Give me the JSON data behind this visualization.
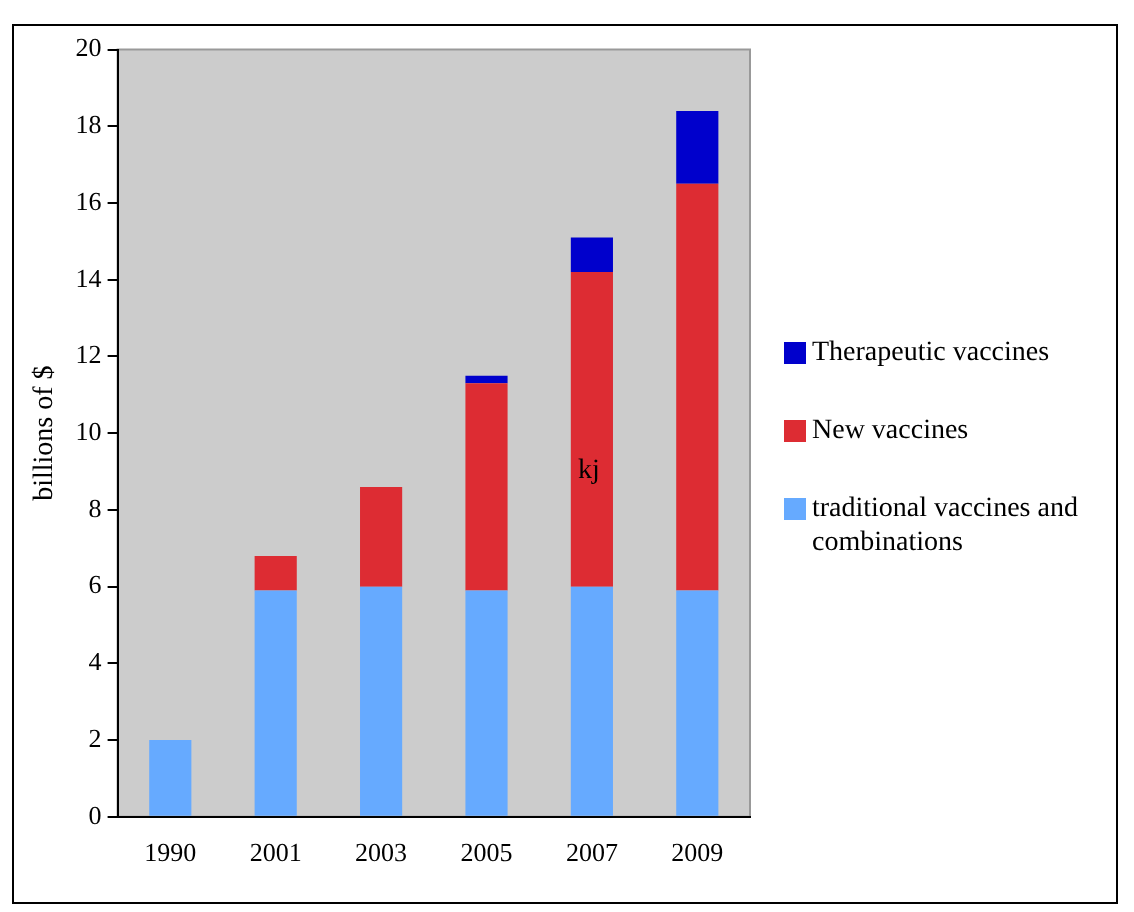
{
  "chart_data": {
    "type": "bar",
    "stacked": true,
    "ylabel": "billions of $",
    "categories": [
      "1990",
      "2001",
      "2003",
      "2005",
      "2007",
      "2009"
    ],
    "series": [
      {
        "name": "traditional vaccines and combinations",
        "color": "#66aaff",
        "values": [
          2.0,
          5.9,
          6.0,
          5.9,
          6.0,
          5.9
        ]
      },
      {
        "name": "New vaccines",
        "color": "#dd2c33",
        "values": [
          null,
          0.9,
          2.6,
          5.4,
          8.2,
          10.6
        ]
      },
      {
        "name": "Therapeutic vaccines",
        "color": "#0000cc",
        "values": [
          null,
          null,
          null,
          0.2,
          0.9,
          1.9
        ]
      }
    ],
    "ylim": [
      0,
      20
    ],
    "yticks": [
      0,
      2,
      4,
      6,
      8,
      10,
      12,
      14,
      16,
      18,
      20
    ],
    "grid": false,
    "legend": "right",
    "annotations": [
      "kj"
    ]
  }
}
